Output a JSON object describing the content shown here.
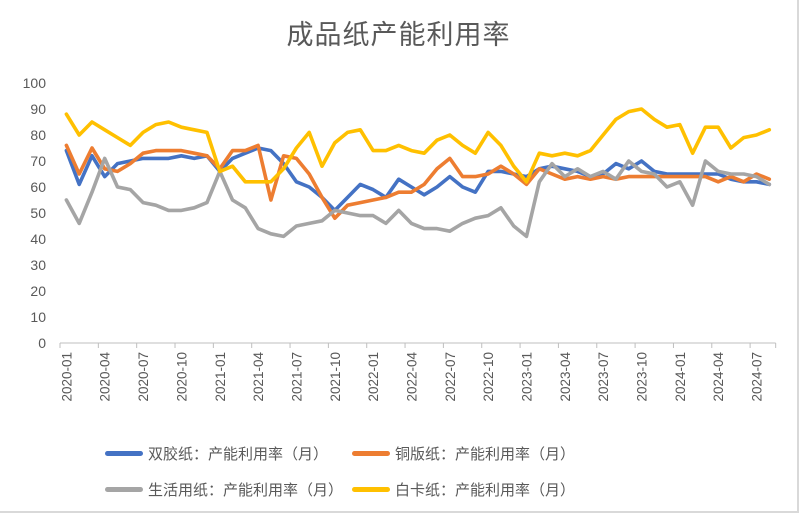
{
  "chart_data": {
    "type": "line",
    "title": "成品纸产能利用率",
    "grid": false,
    "legend_position": "bottom",
    "ylim": [
      0,
      100
    ],
    "y_step": 10,
    "y_ticks": [
      0,
      10,
      20,
      30,
      40,
      50,
      60,
      70,
      80,
      90,
      100
    ],
    "x_label_every": 3,
    "x": [
      "2020-01",
      "2020-02",
      "2020-03",
      "2020-04",
      "2020-05",
      "2020-06",
      "2020-07",
      "2020-08",
      "2020-09",
      "2020-10",
      "2020-11",
      "2020-12",
      "2021-01",
      "2021-02",
      "2021-03",
      "2021-04",
      "2021-05",
      "2021-06",
      "2021-07",
      "2021-08",
      "2021-09",
      "2021-10",
      "2021-11",
      "2021-12",
      "2022-01",
      "2022-02",
      "2022-03",
      "2022-04",
      "2022-05",
      "2022-06",
      "2022-07",
      "2022-08",
      "2022-09",
      "2022-10",
      "2022-11",
      "2022-12",
      "2023-01",
      "2023-02",
      "2023-03",
      "2023-04",
      "2023-05",
      "2023-06",
      "2023-07",
      "2023-08",
      "2023-09",
      "2023-10",
      "2023-11",
      "2023-12",
      "2024-01",
      "2024-02",
      "2024-03",
      "2024-04",
      "2024-05",
      "2024-06",
      "2024-07",
      "2024-08"
    ],
    "series": [
      {
        "name": "双胶纸：产能利用率（月）",
        "color": "#4472C4",
        "values": [
          74,
          61,
          72,
          64,
          69,
          70,
          71,
          71,
          71,
          72,
          71,
          72,
          66,
          71,
          73,
          75,
          74,
          69,
          62,
          60,
          56,
          51,
          56,
          61,
          59,
          56,
          63,
          60,
          57,
          60,
          64,
          60,
          58,
          66,
          66,
          65,
          64,
          67,
          68,
          67,
          66,
          64,
          65,
          69,
          67,
          70,
          66,
          65,
          65,
          65,
          65,
          65,
          63,
          62,
          62,
          61
        ]
      },
      {
        "name": "铜版纸：产能利用率（月）",
        "color": "#ED7D31",
        "values": [
          76,
          65,
          75,
          67,
          66,
          69,
          73,
          74,
          74,
          74,
          73,
          72,
          67,
          74,
          74,
          76,
          55,
          72,
          71,
          65,
          56,
          48,
          53,
          54,
          55,
          56,
          58,
          58,
          61,
          67,
          71,
          64,
          64,
          65,
          68,
          65,
          61,
          67,
          65,
          63,
          64,
          63,
          64,
          63,
          64,
          64,
          64,
          64,
          64,
          64,
          64,
          62,
          64,
          62,
          65,
          63
        ]
      },
      {
        "name": "生活用纸：产能利用率（月）",
        "color": "#A5A5A5",
        "values": [
          55,
          46,
          58,
          71,
          60,
          59,
          54,
          53,
          51,
          51,
          52,
          54,
          66,
          55,
          52,
          44,
          42,
          41,
          45,
          46,
          47,
          51,
          50,
          49,
          49,
          46,
          51,
          46,
          44,
          44,
          43,
          46,
          48,
          49,
          52,
          45,
          41,
          62,
          69,
          64,
          67,
          64,
          66,
          63,
          70,
          66,
          65,
          60,
          62,
          53,
          70,
          66,
          65,
          65,
          64,
          61
        ]
      },
      {
        "name": "白卡纸：产能利用率（月）",
        "color": "#FFC000",
        "values": [
          88,
          80,
          85,
          82,
          79,
          76,
          81,
          84,
          85,
          83,
          82,
          81,
          66,
          68,
          62,
          62,
          62,
          67,
          75,
          81,
          68,
          77,
          81,
          82,
          74,
          74,
          76,
          74,
          73,
          78,
          80,
          76,
          73,
          81,
          76,
          68,
          62,
          73,
          72,
          73,
          72,
          74,
          80,
          86,
          89,
          90,
          86,
          83,
          84,
          73,
          83,
          83,
          75,
          79,
          80,
          82
        ]
      }
    ],
    "axis_color": "#BFBFBF",
    "label_color": "#595959"
  }
}
